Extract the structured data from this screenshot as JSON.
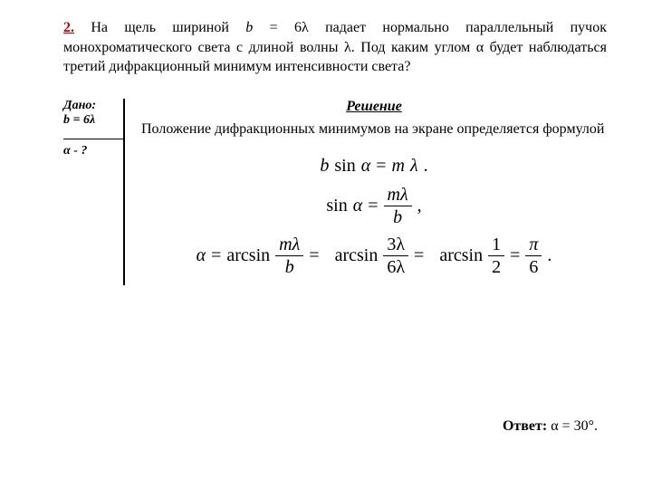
{
  "problem": {
    "number": "2.",
    "text_after_number": " На щель шириной ",
    "text_b": "b",
    "text_eq": " = 6λ  падает нормально параллельный пучок монохроматического света с длиной волны λ. Под каким углом α будет наблюдаться третий дифракционный минимум интенсивности света?"
  },
  "given": {
    "title": "Дано:",
    "line1": "b = 6λ",
    "line2": "α - ?"
  },
  "solution": {
    "title": "Решение",
    "text": "Положение дифракционных минимумов на экране определяется формулой"
  },
  "equations": {
    "eq1_lhs_b": "b",
    "eq1_sin": "sin",
    "eq1_alpha": "α",
    "eq1_eq": "=",
    "eq1_m": "m",
    "eq1_lambda": "λ",
    "eq1_dot": ".",
    "eq2_sin": "sin",
    "eq2_alpha": "α",
    "eq2_eq": "=",
    "eq2_num_m": "m",
    "eq2_num_l": "λ",
    "eq2_den": "b",
    "eq2_comma": ",",
    "eq3_alpha": "α",
    "eq3_eq1": "=",
    "eq3_arcsin": "arcsin",
    "eq3_f1_num_m": "m",
    "eq3_f1_num_l": "λ",
    "eq3_f1_den": "b",
    "eq3_eq2": "=",
    "eq3_f2_num": "3λ",
    "eq3_f2_den": "6λ",
    "eq3_eq3": "=",
    "eq3_f3_num": "1",
    "eq3_f3_den": "2",
    "eq3_eq4": "=",
    "eq3_f4_num": "π",
    "eq3_f4_den": "6",
    "eq3_dot": "."
  },
  "answer": {
    "label": "Ответ:",
    "value": "  α = 30°."
  }
}
